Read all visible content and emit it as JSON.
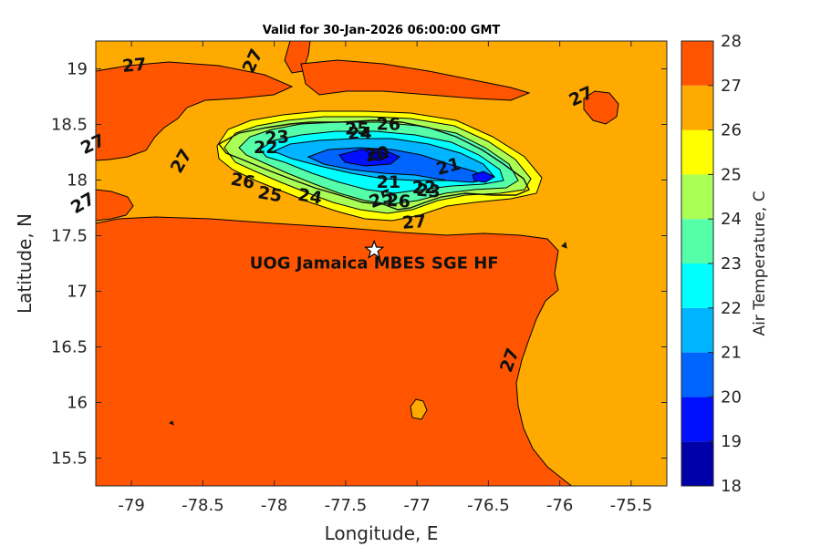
{
  "title": "Valid for 30-Jan-2026 06:00:00 GMT",
  "x_axis": {
    "label": "Longitude, E",
    "range": [
      -79.25,
      -75.25
    ],
    "ticks": [
      -79,
      -78.5,
      -78,
      -77.5,
      -77,
      -76.5,
      -76,
      -75.5
    ],
    "tick_labels": [
      "-79",
      "-78.5",
      "-78",
      "-77.5",
      "-77",
      "-76.5",
      "-76",
      "-75.5"
    ]
  },
  "y_axis": {
    "label": "Latitude, N",
    "range": [
      15.25,
      19.25
    ],
    "ticks": [
      15.5,
      16,
      16.5,
      17,
      17.5,
      18,
      18.5,
      19
    ],
    "tick_labels": [
      "15.5",
      "16",
      "16.5",
      "17",
      "17.5",
      "18",
      "18.5",
      "19"
    ]
  },
  "colorbar": {
    "label": "Air Temperature, C",
    "levels": [
      18,
      19,
      20,
      21,
      22,
      23,
      24,
      25,
      26,
      27,
      28
    ],
    "tick_labels": [
      "18",
      "19",
      "20",
      "21",
      "22",
      "23",
      "24",
      "25",
      "26",
      "27",
      "28"
    ],
    "colors": [
      "#0000a8",
      "#0010ff",
      "#0064ff",
      "#00b4ff",
      "#00ffff",
      "#55ffaa",
      "#aaff55",
      "#ffff00",
      "#ffaa00",
      "#ff5500",
      "#ff0000"
    ]
  },
  "station": {
    "name": "UOG Jamaica MBES SGE HF",
    "lon": -77.3,
    "lat": 17.37,
    "marker": "star-icon"
  },
  "contour_labels": [
    {
      "text": "27",
      "lon": -78.98,
      "lat": 19.03,
      "rot": -5
    },
    {
      "text": "27",
      "lon": -78.15,
      "lat": 19.07,
      "rot": -65
    },
    {
      "text": "27",
      "lon": -79.27,
      "lat": 18.32,
      "rot": -25
    },
    {
      "text": "27",
      "lon": -78.65,
      "lat": 18.17,
      "rot": -60
    },
    {
      "text": "27",
      "lon": -79.34,
      "lat": 17.79,
      "rot": -30
    },
    {
      "text": "27",
      "lon": -75.85,
      "lat": 18.75,
      "rot": -25
    },
    {
      "text": "27",
      "lon": -77.02,
      "lat": 17.62,
      "rot": -5
    },
    {
      "text": "27",
      "lon": -76.35,
      "lat": 16.38,
      "rot": -70
    },
    {
      "text": "26",
      "lon": -78.22,
      "lat": 17.99,
      "rot": 10
    },
    {
      "text": "26",
      "lon": -77.2,
      "lat": 18.5,
      "rot": 0
    },
    {
      "text": "26",
      "lon": -77.13,
      "lat": 17.81,
      "rot": 5
    },
    {
      "text": "25",
      "lon": -77.42,
      "lat": 18.46,
      "rot": 0
    },
    {
      "text": "25",
      "lon": -78.03,
      "lat": 17.87,
      "rot": 10
    },
    {
      "text": "25",
      "lon": -77.25,
      "lat": 17.83,
      "rot": -20
    },
    {
      "text": "24",
      "lon": -77.4,
      "lat": 18.42,
      "rot": 0
    },
    {
      "text": "24",
      "lon": -77.75,
      "lat": 17.85,
      "rot": 10
    },
    {
      "text": "23",
      "lon": -77.98,
      "lat": 18.38,
      "rot": -5
    },
    {
      "text": "23",
      "lon": -76.92,
      "lat": 17.9,
      "rot": 5
    },
    {
      "text": "22",
      "lon": -78.06,
      "lat": 18.29,
      "rot": 0
    },
    {
      "text": "22",
      "lon": -76.95,
      "lat": 17.93,
      "rot": 0
    },
    {
      "text": "21",
      "lon": -77.2,
      "lat": 17.98,
      "rot": 0
    },
    {
      "text": "21",
      "lon": -76.78,
      "lat": 18.12,
      "rot": -15
    },
    {
      "text": "20",
      "lon": -77.28,
      "lat": 18.23,
      "rot": -10
    }
  ]
}
